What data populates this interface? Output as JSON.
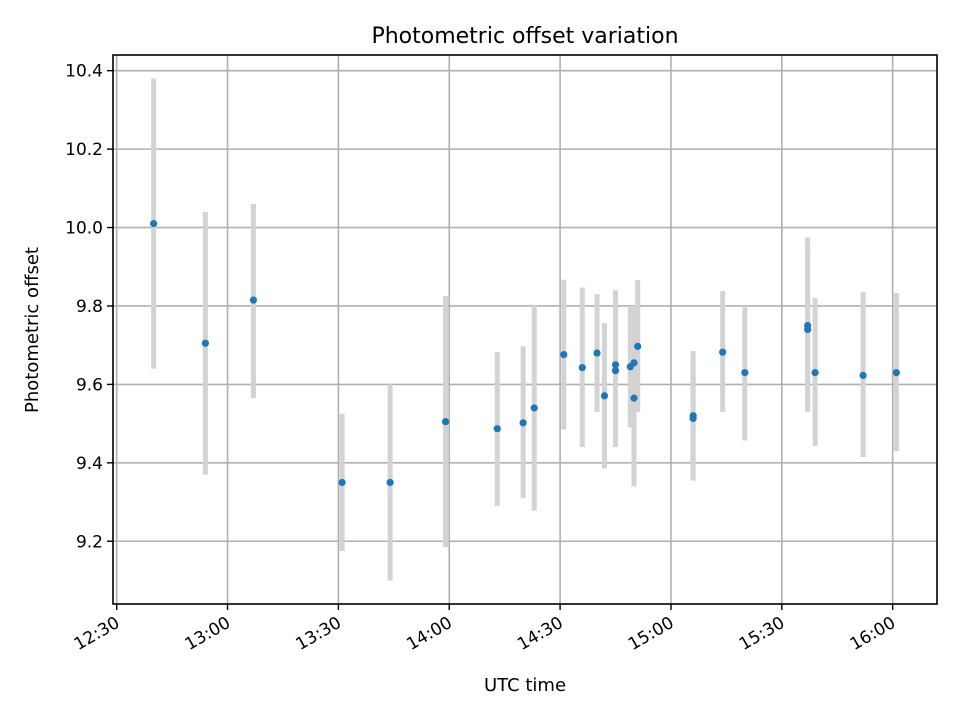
{
  "chart_data": {
    "type": "scatter",
    "title": "Photometric offset variation",
    "xlabel": "UTC time",
    "ylabel": "Photometric offset",
    "x_axis": {
      "kind": "time",
      "range": [
        "12:29",
        "16:12"
      ],
      "ticks": [
        "12:30",
        "13:00",
        "13:30",
        "14:00",
        "14:30",
        "15:00",
        "15:30",
        "16:00"
      ]
    },
    "y_axis": {
      "range": [
        9.04,
        10.44
      ],
      "ticks": [
        "9.2",
        "9.4",
        "9.6",
        "9.8",
        "10.0",
        "10.2",
        "10.4"
      ]
    },
    "grid": true,
    "colors": {
      "marker": "#1f77b4",
      "errorbar": "#d3d3d3",
      "grid": "#b0b0b0"
    },
    "series": [
      {
        "points": [
          {
            "t": "12:40",
            "y": 10.01,
            "lo": 9.64,
            "hi": 10.38
          },
          {
            "t": "12:54",
            "y": 9.705,
            "lo": 9.37,
            "hi": 10.04
          },
          {
            "t": "13:07",
            "y": 9.815,
            "lo": 9.565,
            "hi": 10.06
          },
          {
            "t": "13:31",
            "y": 9.35,
            "lo": 9.175,
            "hi": 9.525
          },
          {
            "t": "13:44",
            "y": 9.35,
            "lo": 9.1,
            "hi": 9.6
          },
          {
            "t": "13:59",
            "y": 9.505,
            "lo": 9.185,
            "hi": 9.825
          },
          {
            "t": "14:13",
            "y": 9.487,
            "lo": 9.29,
            "hi": 9.683
          },
          {
            "t": "14:20",
            "y": 9.502,
            "lo": 9.31,
            "hi": 9.697
          },
          {
            "t": "14:23",
            "y": 9.54,
            "lo": 9.278,
            "hi": 9.803
          },
          {
            "t": "14:31",
            "y": 9.676,
            "lo": 9.485,
            "hi": 9.867
          },
          {
            "t": "14:36",
            "y": 9.643,
            "lo": 9.44,
            "hi": 9.847
          },
          {
            "t": "14:40",
            "y": 9.68,
            "lo": 9.53,
            "hi": 9.83
          },
          {
            "t": "14:42",
            "y": 9.571,
            "lo": 9.386,
            "hi": 9.756
          },
          {
            "t": "14:45",
            "y": 9.635,
            "lo": 9.44,
            "hi": 9.83
          },
          {
            "t": "14:45",
            "y": 9.65,
            "lo": 9.46,
            "hi": 9.84
          },
          {
            "t": "14:49",
            "y": 9.645,
            "lo": 9.49,
            "hi": 9.8
          },
          {
            "t": "14:50",
            "y": 9.565,
            "lo": 9.34,
            "hi": 9.79
          },
          {
            "t": "14:50",
            "y": 9.655,
            "lo": 9.51,
            "hi": 9.8
          },
          {
            "t": "14:51",
            "y": 9.697,
            "lo": 9.53,
            "hi": 9.866
          },
          {
            "t": "15:06",
            "y": 9.52,
            "lo": 9.355,
            "hi": 9.685
          },
          {
            "t": "15:06",
            "y": 9.513,
            "lo": 9.36,
            "hi": 9.67
          },
          {
            "t": "15:14",
            "y": 9.682,
            "lo": 9.53,
            "hi": 9.838
          },
          {
            "t": "15:20",
            "y": 9.63,
            "lo": 9.457,
            "hi": 9.8
          },
          {
            "t": "15:37",
            "y": 9.74,
            "lo": 9.535,
            "hi": 9.945
          },
          {
            "t": "15:37",
            "y": 9.75,
            "lo": 9.53,
            "hi": 9.975
          },
          {
            "t": "15:39",
            "y": 9.63,
            "lo": 9.443,
            "hi": 9.82
          },
          {
            "t": "15:52",
            "y": 9.623,
            "lo": 9.415,
            "hi": 9.835
          },
          {
            "t": "16:01",
            "y": 9.63,
            "lo": 9.43,
            "hi": 9.833
          }
        ]
      }
    ]
  }
}
